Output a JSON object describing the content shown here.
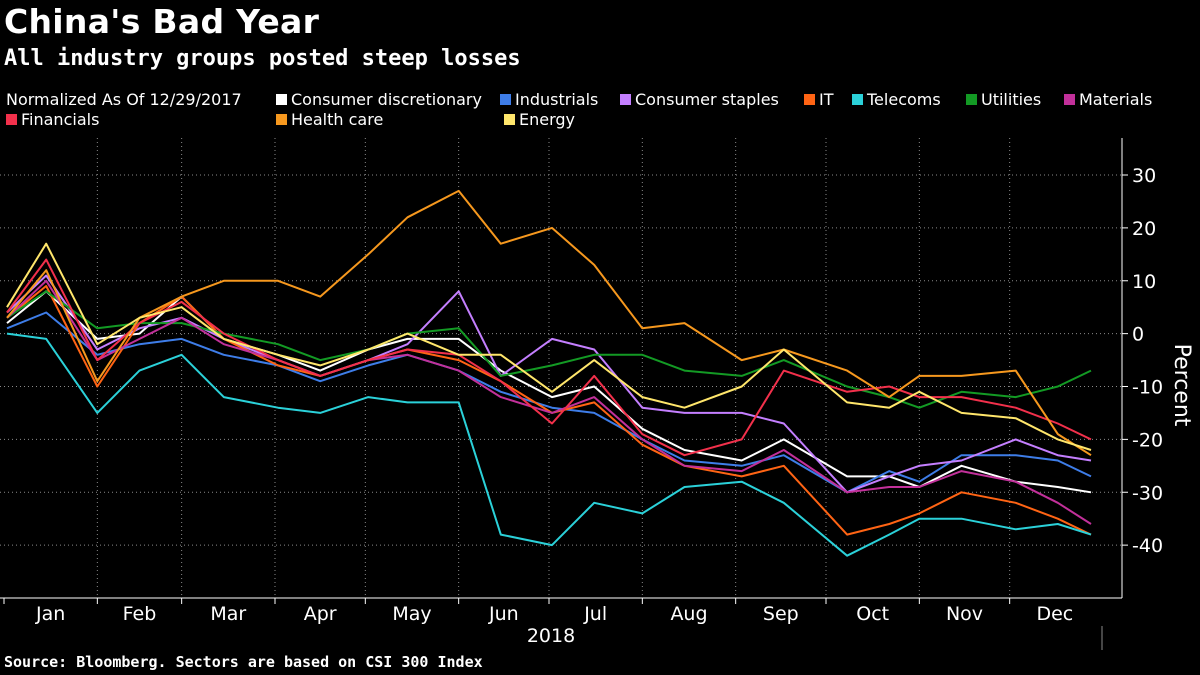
{
  "title": "China's Bad Year",
  "subtitle": "All industry groups posted steep losses",
  "source": "Source: Bloomberg. Sectors are based on CSI 300 Index",
  "legend_title": "Normalized As Of 12/29/2017",
  "chart_data": {
    "type": "line",
    "title": "China's Bad Year",
    "subtitle": "All industry groups posted steep losses",
    "ylabel": "Percent",
    "year_label": "2018",
    "ylim": [
      -50,
      37
    ],
    "yticks": [
      -40,
      -30,
      -20,
      -10,
      0,
      10,
      20,
      30
    ],
    "grid": true,
    "legend_position": "top",
    "x_dates": [
      "2018-01-02",
      "2018-01-15",
      "2018-02-01",
      "2018-02-15",
      "2018-03-01",
      "2018-03-15",
      "2018-04-02",
      "2018-04-16",
      "2018-05-02",
      "2018-05-15",
      "2018-06-01",
      "2018-06-15",
      "2018-07-02",
      "2018-07-16",
      "2018-08-01",
      "2018-08-15",
      "2018-09-03",
      "2018-09-17",
      "2018-10-08",
      "2018-10-22",
      "2018-11-01",
      "2018-11-15",
      "2018-12-03",
      "2018-12-17",
      "2018-12-28"
    ],
    "months": [
      "Jan",
      "Feb",
      "Mar",
      "Apr",
      "May",
      "Jun",
      "Jul",
      "Aug",
      "Sep",
      "Oct",
      "Nov",
      "Dec"
    ],
    "series": [
      {
        "name": "Consumer discretionary",
        "color": "#ffffff",
        "values": [
          2,
          8,
          -1,
          0,
          7,
          -1,
          -4,
          -7,
          -3,
          -1,
          -1,
          -7,
          -12,
          -10,
          -18,
          -22,
          -24,
          -20,
          -27,
          -27,
          -29,
          -25,
          -28,
          -29,
          -30
        ]
      },
      {
        "name": "Industrials",
        "color": "#3e7de8",
        "values": [
          1,
          4,
          -4,
          -2,
          -1,
          -4,
          -6,
          -9,
          -6,
          -4,
          -7,
          -11,
          -14,
          -15,
          -20,
          -24,
          -25,
          -23,
          -30,
          -26,
          -28,
          -23,
          -23,
          -24,
          -27
        ]
      },
      {
        "name": "Consumer staples",
        "color": "#c47fff",
        "values": [
          4,
          11,
          -3,
          1,
          3,
          -1,
          -5,
          -8,
          -5,
          -2,
          8,
          -8,
          -1,
          -3,
          -14,
          -15,
          -15,
          -17,
          -30,
          -27,
          -25,
          -24,
          -20,
          -23,
          -24
        ]
      },
      {
        "name": "IT",
        "color": "#ff6414",
        "values": [
          3,
          9,
          -10,
          2,
          7,
          -1,
          -6,
          -8,
          -5,
          -3,
          -5,
          -9,
          -15,
          -13,
          -21,
          -25,
          -27,
          -25,
          -38,
          -36,
          -34,
          -30,
          -32,
          -35,
          -38
        ]
      },
      {
        "name": "Telecoms",
        "color": "#2bd1d9",
        "values": [
          0,
          -1,
          -15,
          -7,
          -4,
          -12,
          -14,
          -15,
          -12,
          -13,
          -13,
          -38,
          -40,
          -32,
          -34,
          -29,
          -28,
          -32,
          -42,
          -38,
          -35,
          -35,
          -37,
          -36,
          -38
        ]
      },
      {
        "name": "Utilities",
        "color": "#139a24",
        "values": [
          3,
          8,
          1,
          2,
          2,
          0,
          -2,
          -5,
          -3,
          0,
          1,
          -8,
          -6,
          -4,
          -4,
          -7,
          -8,
          -5,
          -10,
          -12,
          -14,
          -11,
          -12,
          -10,
          -7
        ]
      },
      {
        "name": "Materials",
        "color": "#c2309a",
        "values": [
          3,
          10,
          -5,
          -1,
          3,
          -2,
          -5,
          -8,
          -5,
          -4,
          -7,
          -12,
          -15,
          -12,
          -20,
          -25,
          -26,
          -22,
          -30,
          -29,
          -29,
          -26,
          -28,
          -32,
          -36
        ]
      },
      {
        "name": "Financials",
        "color": "#f2304b",
        "values": [
          4,
          14,
          -5,
          2,
          6,
          0,
          -5,
          -8,
          -5,
          -3,
          -4,
          -9,
          -17,
          -8,
          -19,
          -23,
          -20,
          -7,
          -11,
          -10,
          -12,
          -12,
          -14,
          -17,
          -20
        ]
      },
      {
        "name": "Health care",
        "color": "#f6981e",
        "values": [
          3,
          12,
          -9,
          3,
          7,
          10,
          10,
          7,
          15,
          22,
          27,
          17,
          20,
          13,
          1,
          2,
          -5,
          -3,
          -7,
          -12,
          -8,
          -8,
          -7,
          -19,
          -23
        ]
      },
      {
        "name": "Energy",
        "color": "#ffe66b",
        "values": [
          5,
          17,
          -2,
          3,
          5,
          -1,
          -4,
          -6,
          -3,
          0,
          -4,
          -4,
          -11,
          -5,
          -12,
          -14,
          -10,
          -3,
          -13,
          -14,
          -11,
          -15,
          -16,
          -20,
          -22
        ]
      }
    ]
  }
}
